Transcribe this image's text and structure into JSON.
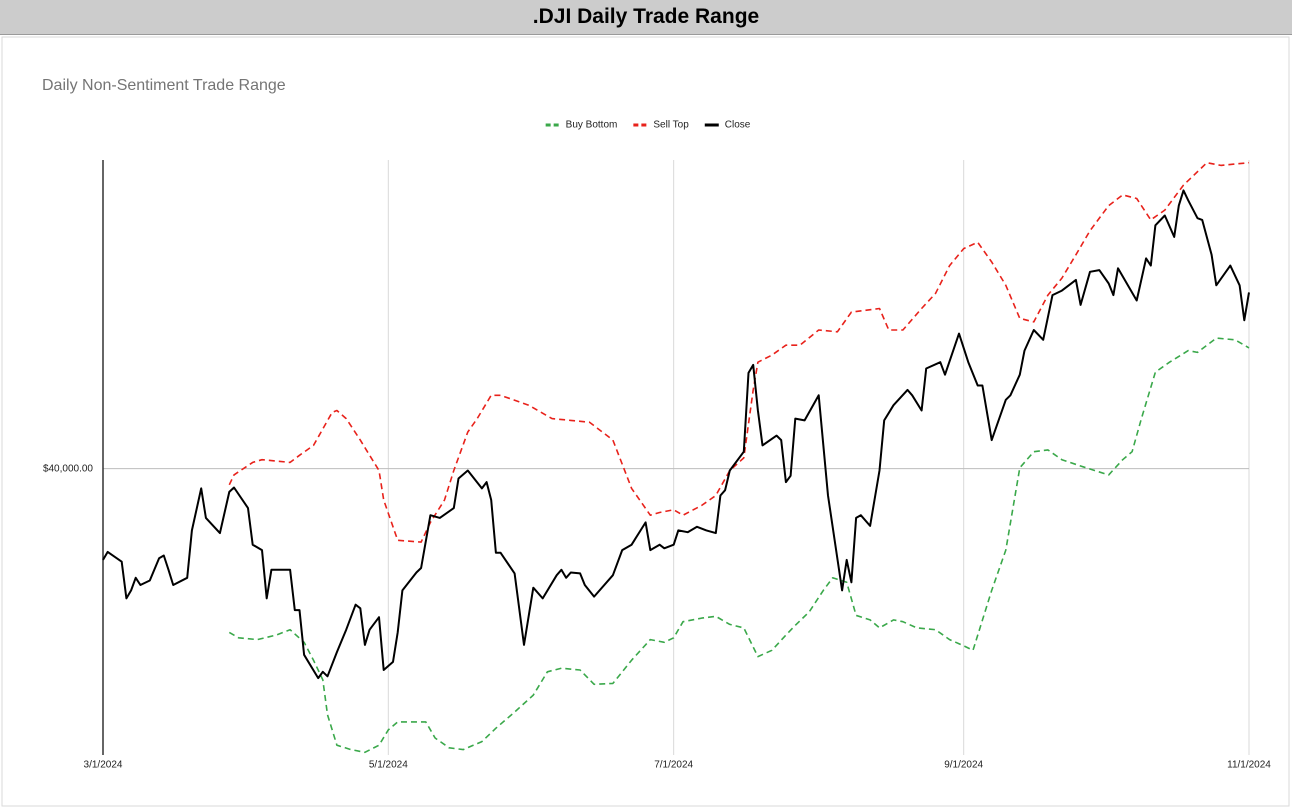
{
  "header": {
    "title": ".DJI Daily Trade Range"
  },
  "chart_data": {
    "type": "line",
    "title": "Daily Non-Sentiment Trade Range",
    "xlim": [
      "3/1/2024",
      "11/1/2024"
    ],
    "xticks": [
      "3/1/2024",
      "5/1/2024",
      "7/1/2024",
      "9/1/2024",
      "11/1/2024"
    ],
    "ylim": [
      36800,
      43450
    ],
    "yticks": [
      {
        "value": 40000,
        "label": "$40,000.00"
      }
    ],
    "grid": true,
    "legend": "top",
    "series": [
      {
        "name": "Buy Bottom",
        "color": "#3aa84a",
        "dashed": true,
        "x": [
          "3/28/2024",
          "3/30/2024",
          "4/3/2024",
          "4/7/2024",
          "4/10/2024",
          "4/13/2024",
          "4/15/2024",
          "4/17/2024",
          "4/18/2024",
          "4/20/2024",
          "4/23/2024",
          "4/26/2024",
          "4/29/2024",
          "5/1/2024",
          "5/3/2024",
          "5/9/2024",
          "5/11/2024",
          "5/14/2024",
          "5/17/2024",
          "5/21/2024",
          "5/24/2024",
          "5/28/2024",
          "6/1/2024",
          "6/4/2024",
          "6/7/2024",
          "6/11/2024",
          "6/14/2024",
          "6/18/2024",
          "6/22/2024",
          "6/26/2024",
          "6/29/2024",
          "7/1/2024",
          "7/3/2024",
          "7/7/2024",
          "7/10/2024",
          "7/13/2024",
          "7/16/2024",
          "7/19/2024",
          "7/22/2024",
          "7/25/2024",
          "7/27/2024",
          "7/30/2024",
          "8/2/2024",
          "8/4/2024",
          "8/7/2024",
          "8/9/2024",
          "8/12/2024",
          "8/14/2024",
          "8/17/2024",
          "8/19/2024",
          "8/22/2024",
          "8/26/2024",
          "8/29/2024",
          "9/1/2024",
          "9/3/2024",
          "9/7/2024",
          "9/10/2024",
          "9/13/2024",
          "9/16/2024",
          "9/19/2024",
          "9/22/2024",
          "9/26/2024",
          "9/29/2024",
          "10/2/2024",
          "10/5/2024",
          "10/7/2024",
          "10/9/2024",
          "10/12/2024",
          "10/15/2024",
          "10/19/2024",
          "10/21/2024",
          "10/25/2024",
          "10/29/2024",
          "11/1/2024"
        ],
        "values": [
          38170,
          38110,
          38090,
          38140,
          38200,
          38060,
          37860,
          37640,
          37250,
          36910,
          36860,
          36830,
          36910,
          37080,
          37170,
          37170,
          36990,
          36880,
          36860,
          36950,
          37100,
          37280,
          37470,
          37730,
          37770,
          37750,
          37590,
          37600,
          37860,
          38090,
          38060,
          38110,
          38290,
          38330,
          38350,
          38260,
          38220,
          37900,
          37970,
          38140,
          38250,
          38400,
          38640,
          38780,
          38730,
          38360,
          38310,
          38220,
          38310,
          38290,
          38220,
          38200,
          38090,
          38020,
          37970,
          38640,
          39090,
          40010,
          40190,
          40210,
          40100,
          40030,
          39980,
          39930,
          40100,
          40190,
          40560,
          41080,
          41190,
          41320,
          41300,
          41460,
          41440,
          41350
        ]
      },
      {
        "name": "Sell Top",
        "color": "#e8221b",
        "dashed": true,
        "x": [
          "3/28/2024",
          "3/29/2024",
          "4/2/2024",
          "4/4/2024",
          "4/10/2024",
          "4/12/2024",
          "4/15/2024",
          "4/19/2024",
          "4/20/2024",
          "4/22/2024",
          "4/25/2024",
          "4/27/2024",
          "4/29/2024",
          "4/30/2024",
          "5/3/2024",
          "5/8/2024",
          "5/10/2024",
          "5/13/2024",
          "5/15/2024",
          "5/18/2024",
          "5/20/2024",
          "5/23/2024",
          "5/25/2024",
          "5/31/2024",
          "6/5/2024",
          "6/9/2024",
          "6/13/2024",
          "6/18/2024",
          "6/22/2024",
          "6/26/2024",
          "6/28/2024",
          "7/1/2024",
          "7/3/2024",
          "7/7/2024",
          "7/10/2024",
          "7/13/2024",
          "7/16/2024",
          "7/18/2024",
          "7/19/2024",
          "7/22/2024",
          "7/25/2024",
          "7/28/2024",
          "8/1/2024",
          "8/5/2024",
          "8/8/2024",
          "8/14/2024",
          "8/16/2024",
          "8/19/2024",
          "8/23/2024",
          "8/26/2024",
          "8/29/2024",
          "9/1/2024",
          "9/4/2024",
          "9/7/2024",
          "9/10/2024",
          "9/13/2024",
          "9/16/2024",
          "9/19/2024",
          "9/22/2024",
          "9/25/2024",
          "9/28/2024",
          "10/2/2024",
          "10/5/2024",
          "10/8/2024",
          "10/11/2024",
          "10/14/2024",
          "10/18/2024",
          "10/23/2024",
          "10/26/2024",
          "11/1/2024"
        ],
        "values": [
          39820,
          39930,
          40070,
          40100,
          40070,
          40150,
          40260,
          40630,
          40650,
          40560,
          40320,
          40150,
          39980,
          39650,
          39200,
          39180,
          39400,
          39650,
          39980,
          40410,
          40560,
          40820,
          40820,
          40710,
          40560,
          40540,
          40520,
          40320,
          39780,
          39480,
          39510,
          39540,
          39480,
          39590,
          39700,
          39980,
          40120,
          40880,
          41190,
          41270,
          41380,
          41380,
          41550,
          41530,
          41750,
          41790,
          41550,
          41550,
          41790,
          41960,
          42270,
          42460,
          42530,
          42310,
          42050,
          41680,
          41640,
          41940,
          42130,
          42390,
          42660,
          42940,
          43060,
          43020,
          42780,
          42890,
          43170,
          43420,
          43390,
          43420
        ]
      },
      {
        "name": "Close",
        "color": "#000000",
        "dashed": false,
        "x": [
          "3/1/2024",
          "3/2/2024",
          "3/5/2024",
          "3/6/2024",
          "3/7/2024",
          "3/8/2024",
          "3/9/2024",
          "3/11/2024",
          "3/13/2024",
          "3/14/2024",
          "3/15/2024",
          "3/16/2024",
          "3/19/2024",
          "3/20/2024",
          "3/22/2024",
          "3/23/2024",
          "3/26/2024",
          "3/28/2024",
          "3/29/2024",
          "4/1/2024",
          "4/2/2024",
          "4/4/2024",
          "4/5/2024",
          "4/6/2024",
          "4/10/2024",
          "4/11/2024",
          "4/12/2024",
          "4/13/2024",
          "4/16/2024",
          "4/17/2024",
          "4/18/2024",
          "4/20/2024",
          "4/22/2024",
          "4/24/2024",
          "4/25/2024",
          "4/26/2024",
          "4/27/2024",
          "4/29/2024",
          "4/30/2024",
          "5/2/2024",
          "5/3/2024",
          "5/4/2024",
          "5/7/2024",
          "5/8/2024",
          "5/10/2024",
          "5/12/2024",
          "5/15/2024",
          "5/16/2024",
          "5/18/2024",
          "5/21/2024",
          "5/22/2024",
          "5/23/2024",
          "5/24/2024",
          "5/25/2024",
          "5/28/2024",
          "5/30/2024",
          "6/1/2024",
          "6/3/2024",
          "6/6/2024",
          "6/7/2024",
          "6/8/2024",
          "6/9/2024",
          "6/11/2024",
          "6/12/2024",
          "6/14/2024",
          "6/18/2024",
          "6/20/2024",
          "6/22/2024",
          "6/25/2024",
          "6/26/2024",
          "6/28/2024",
          "6/29/2024",
          "7/1/2024",
          "7/2/2024",
          "7/4/2024",
          "7/6/2024",
          "7/8/2024",
          "7/10/2024",
          "7/11/2024",
          "7/12/2024",
          "7/13/2024",
          "7/16/2024",
          "7/17/2024",
          "7/18/2024",
          "7/19/2024",
          "7/20/2024",
          "7/23/2024",
          "7/24/2024",
          "7/25/2024",
          "7/26/2024",
          "7/27/2024",
          "7/29/2024",
          "8/1/2024",
          "8/3/2024",
          "8/6/2024",
          "8/7/2024",
          "8/8/2024",
          "8/9/2024",
          "8/10/2024",
          "8/12/2024",
          "8/14/2024",
          "8/15/2024",
          "8/17/2024",
          "8/20/2024",
          "8/21/2024",
          "8/23/2024",
          "8/24/2024",
          "8/27/2024",
          "8/28/2024",
          "8/31/2024",
          "9/2/2024",
          "9/4/2024",
          "9/5/2024",
          "9/7/2024",
          "9/10/2024",
          "9/11/2024",
          "9/13/2024",
          "9/14/2024",
          "9/16/2024",
          "9/18/2024",
          "9/20/2024",
          "9/22/2024",
          "9/25/2024",
          "9/26/2024",
          "9/28/2024",
          "9/30/2024",
          "10/2/2024",
          "10/3/2024",
          "10/4/2024",
          "10/8/2024",
          "10/10/2024",
          "10/11/2024",
          "10/12/2024",
          "10/14/2024",
          "10/16/2024",
          "10/17/2024",
          "10/18/2024",
          "10/19/2024",
          "10/21/2024",
          "10/22/2024",
          "10/24/2024",
          "10/25/2024",
          "10/28/2024",
          "10/30/2024",
          "10/31/2024",
          "11/1/2024"
        ],
        "values": [
          38980,
          39070,
          38960,
          38550,
          38640,
          38780,
          38700,
          38750,
          39000,
          39030,
          38870,
          38700,
          38780,
          39310,
          39780,
          39450,
          39280,
          39740,
          39790,
          39560,
          39150,
          39090,
          38550,
          38870,
          38870,
          38420,
          38420,
          37920,
          37660,
          37730,
          37680,
          37950,
          38200,
          38480,
          38440,
          38030,
          38200,
          38340,
          37750,
          37840,
          38170,
          38640,
          38840,
          38890,
          39480,
          39450,
          39560,
          39890,
          39980,
          39780,
          39850,
          39650,
          39060,
          39060,
          38830,
          38030,
          38670,
          38550,
          38810,
          38870,
          38780,
          38840,
          38830,
          38700,
          38570,
          38810,
          39090,
          39150,
          39400,
          39090,
          39150,
          39110,
          39150,
          39310,
          39290,
          39350,
          39310,
          39280,
          39700,
          39760,
          39980,
          40190,
          41070,
          41160,
          40650,
          40260,
          40370,
          40320,
          39850,
          39920,
          40560,
          40540,
          40820,
          39700,
          38640,
          38980,
          38730,
          39450,
          39480,
          39360,
          39980,
          40540,
          40710,
          40880,
          40820,
          40650,
          41120,
          41190,
          41050,
          41510,
          41190,
          40930,
          40930,
          40320,
          40770,
          40820,
          41050,
          41320,
          41550,
          41440,
          41940,
          41990,
          42110,
          41830,
          42200,
          42220,
          42070,
          41940,
          42240,
          41880,
          42350,
          42270,
          42720,
          42830,
          42590,
          42940,
          43110,
          43000,
          42800,
          42780,
          42390,
          42050,
          42270,
          42050,
          41660,
          41970
        ]
      }
    ]
  }
}
